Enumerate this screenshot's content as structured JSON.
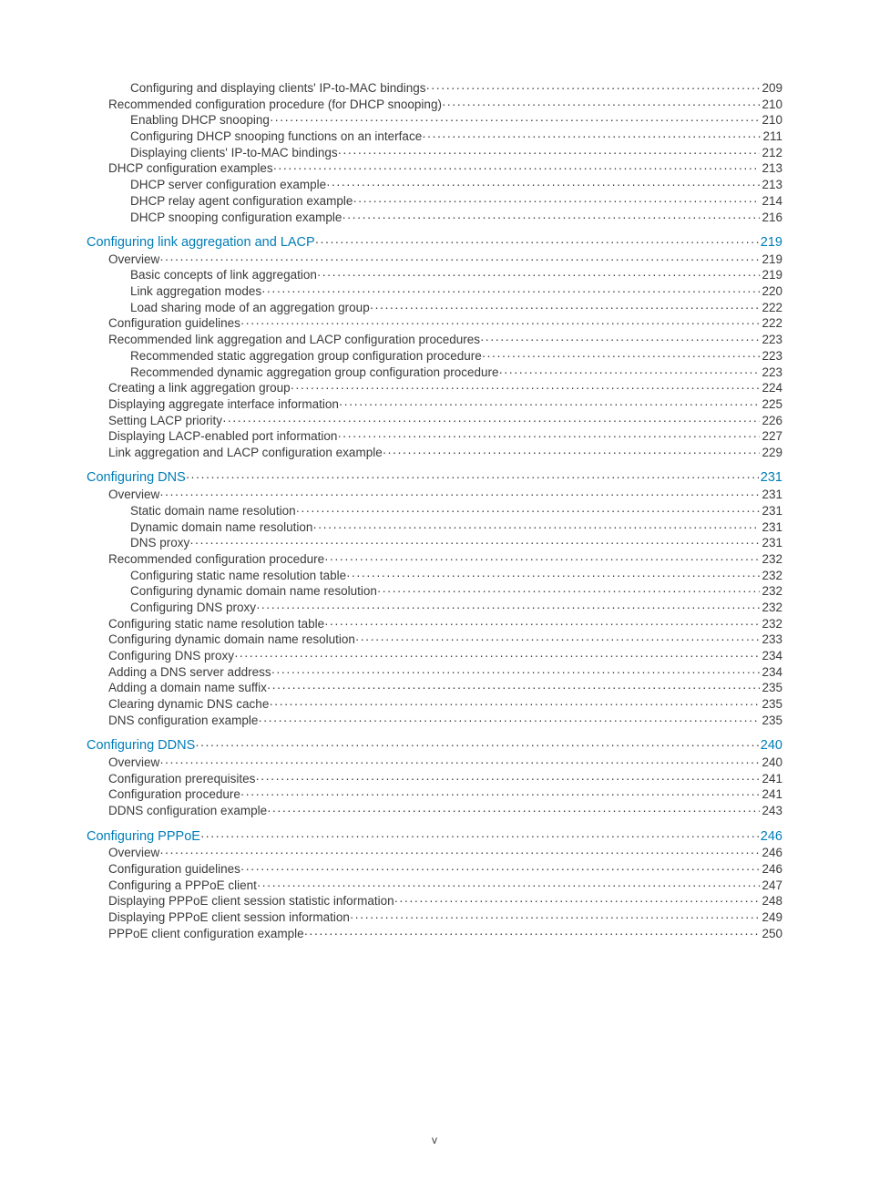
{
  "page_footer": "v",
  "colors": {
    "text": "#3a3a3a",
    "heading": "#007db8",
    "background": "#ffffff"
  },
  "typography": {
    "body_fontsize_pt": 10,
    "heading_fontsize_pt": 11,
    "font_family": "Arial"
  },
  "toc": [
    {
      "level": 2,
      "label": "Configuring and displaying clients' IP-to-MAC bindings",
      "page": "209"
    },
    {
      "level": 1,
      "label": "Recommended configuration procedure (for DHCP snooping)",
      "page": "210"
    },
    {
      "level": 2,
      "label": "Enabling DHCP snooping",
      "page": "210"
    },
    {
      "level": 2,
      "label": "Configuring DHCP snooping functions on an interface",
      "page": "211"
    },
    {
      "level": 2,
      "label": "Displaying clients' IP-to-MAC bindings",
      "page": "212"
    },
    {
      "level": 1,
      "label": "DHCP configuration examples",
      "page": "213"
    },
    {
      "level": 2,
      "label": "DHCP server configuration example",
      "page": "213"
    },
    {
      "level": 2,
      "label": "DHCP relay agent configuration example",
      "page": "214"
    },
    {
      "level": 2,
      "label": "DHCP snooping configuration example",
      "page": "216"
    },
    {
      "level": 0,
      "label": "Configuring link aggregation and LACP",
      "page": "219",
      "section": true
    },
    {
      "level": 1,
      "label": "Overview",
      "page": "219"
    },
    {
      "level": 2,
      "label": "Basic concepts of link aggregation",
      "page": "219"
    },
    {
      "level": 2,
      "label": "Link aggregation modes",
      "page": "220"
    },
    {
      "level": 2,
      "label": "Load sharing mode of an aggregation group",
      "page": "222"
    },
    {
      "level": 1,
      "label": "Configuration guidelines",
      "page": "222"
    },
    {
      "level": 1,
      "label": "Recommended link aggregation and LACP configuration procedures",
      "page": "223"
    },
    {
      "level": 2,
      "label": "Recommended static aggregation group configuration procedure",
      "page": "223"
    },
    {
      "level": 2,
      "label": "Recommended dynamic aggregation group configuration procedure",
      "page": "223"
    },
    {
      "level": 1,
      "label": "Creating a link aggregation group",
      "page": "224"
    },
    {
      "level": 1,
      "label": "Displaying aggregate interface information",
      "page": "225"
    },
    {
      "level": 1,
      "label": "Setting LACP priority",
      "page": "226"
    },
    {
      "level": 1,
      "label": "Displaying LACP-enabled port information",
      "page": "227"
    },
    {
      "level": 1,
      "label": "Link aggregation and LACP configuration example",
      "page": "229"
    },
    {
      "level": 0,
      "label": "Configuring DNS",
      "page": "231",
      "section": true
    },
    {
      "level": 1,
      "label": "Overview",
      "page": "231"
    },
    {
      "level": 2,
      "label": "Static domain name resolution",
      "page": "231"
    },
    {
      "level": 2,
      "label": "Dynamic domain name resolution",
      "page": "231"
    },
    {
      "level": 2,
      "label": "DNS proxy",
      "page": "231"
    },
    {
      "level": 1,
      "label": "Recommended configuration procedure",
      "page": "232"
    },
    {
      "level": 2,
      "label": "Configuring static name resolution table",
      "page": "232"
    },
    {
      "level": 2,
      "label": "Configuring dynamic domain name resolution",
      "page": "232"
    },
    {
      "level": 2,
      "label": "Configuring DNS proxy",
      "page": "232"
    },
    {
      "level": 1,
      "label": "Configuring static name resolution table",
      "page": "232"
    },
    {
      "level": 1,
      "label": "Configuring dynamic domain name resolution",
      "page": "233"
    },
    {
      "level": 1,
      "label": "Configuring DNS proxy",
      "page": "234"
    },
    {
      "level": 1,
      "label": "Adding a DNS server address",
      "page": "234"
    },
    {
      "level": 1,
      "label": "Adding a domain name suffix",
      "page": "235"
    },
    {
      "level": 1,
      "label": "Clearing dynamic DNS cache",
      "page": "235"
    },
    {
      "level": 1,
      "label": "DNS configuration example",
      "page": "235"
    },
    {
      "level": 0,
      "label": "Configuring DDNS",
      "page": "240",
      "section": true
    },
    {
      "level": 1,
      "label": "Overview",
      "page": "240"
    },
    {
      "level": 1,
      "label": "Configuration prerequisites",
      "page": "241"
    },
    {
      "level": 1,
      "label": "Configuration procedure",
      "page": "241"
    },
    {
      "level": 1,
      "label": "DDNS configuration example",
      "page": "243"
    },
    {
      "level": 0,
      "label": "Configuring PPPoE",
      "page": "246",
      "section": true
    },
    {
      "level": 1,
      "label": "Overview",
      "page": "246"
    },
    {
      "level": 1,
      "label": "Configuration guidelines",
      "page": "246"
    },
    {
      "level": 1,
      "label": "Configuring a PPPoE client",
      "page": "247"
    },
    {
      "level": 1,
      "label": "Displaying PPPoE client session statistic information",
      "page": "248"
    },
    {
      "level": 1,
      "label": "Displaying PPPoE client session information",
      "page": "249"
    },
    {
      "level": 1,
      "label": "PPPoE client configuration example",
      "page": "250"
    }
  ]
}
